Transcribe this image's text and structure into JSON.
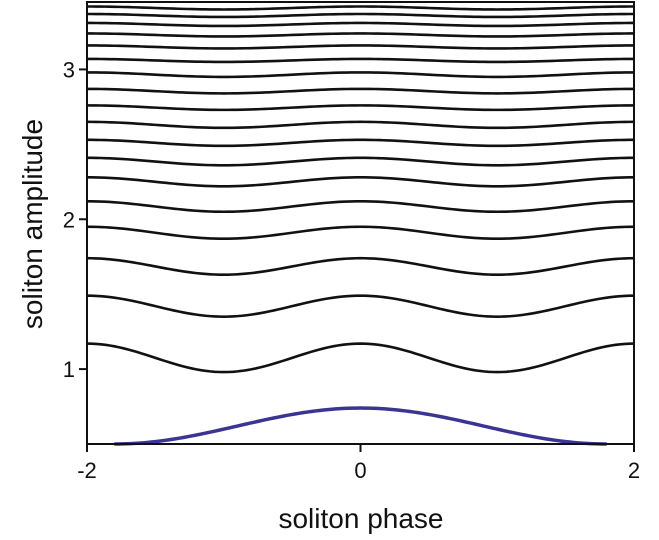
{
  "chart_data": {
    "type": "line",
    "title": "",
    "xlabel": "soliton phase",
    "ylabel": "soliton amplitude",
    "xlim": [
      -2,
      2
    ],
    "ylim": [
      0.5,
      3.45
    ],
    "xticks": [
      {
        "value": -2,
        "label": "-2"
      },
      {
        "value": 0,
        "label": "0"
      },
      {
        "value": 2,
        "label": "2"
      }
    ],
    "yticks": [
      {
        "value": 1,
        "label": "1"
      },
      {
        "value": 2,
        "label": "2"
      },
      {
        "value": 3,
        "label": "3"
      }
    ],
    "grid": false,
    "legend": "none",
    "colors": {
      "separatrix": "#3b3493",
      "curves": "#111111",
      "axes": "#111111"
    },
    "separatrix": {
      "x_range": [
        -1.8,
        1.8
      ],
      "y_edge": 0.5,
      "y_peak": 0.74
    },
    "series": [
      {
        "y_edge": 0.98,
        "y_peak": 1.17
      },
      {
        "y_edge": 1.35,
        "y_peak": 1.49
      },
      {
        "y_edge": 1.63,
        "y_peak": 1.74
      },
      {
        "y_edge": 1.87,
        "y_peak": 1.95
      },
      {
        "y_edge": 2.05,
        "y_peak": 2.12
      },
      {
        "y_edge": 2.22,
        "y_peak": 2.28
      },
      {
        "y_edge": 2.36,
        "y_peak": 2.41
      },
      {
        "y_edge": 2.49,
        "y_peak": 2.53
      },
      {
        "y_edge": 2.61,
        "y_peak": 2.65
      },
      {
        "y_edge": 2.73,
        "y_peak": 2.76
      },
      {
        "y_edge": 2.84,
        "y_peak": 2.87
      },
      {
        "y_edge": 2.95,
        "y_peak": 2.98
      },
      {
        "y_edge": 3.05,
        "y_peak": 3.07
      },
      {
        "y_edge": 3.14,
        "y_peak": 3.16
      },
      {
        "y_edge": 3.22,
        "y_peak": 3.24
      },
      {
        "y_edge": 3.29,
        "y_peak": 3.31
      },
      {
        "y_edge": 3.35,
        "y_peak": 3.37
      },
      {
        "y_edge": 3.4,
        "y_peak": 3.42
      }
    ]
  }
}
